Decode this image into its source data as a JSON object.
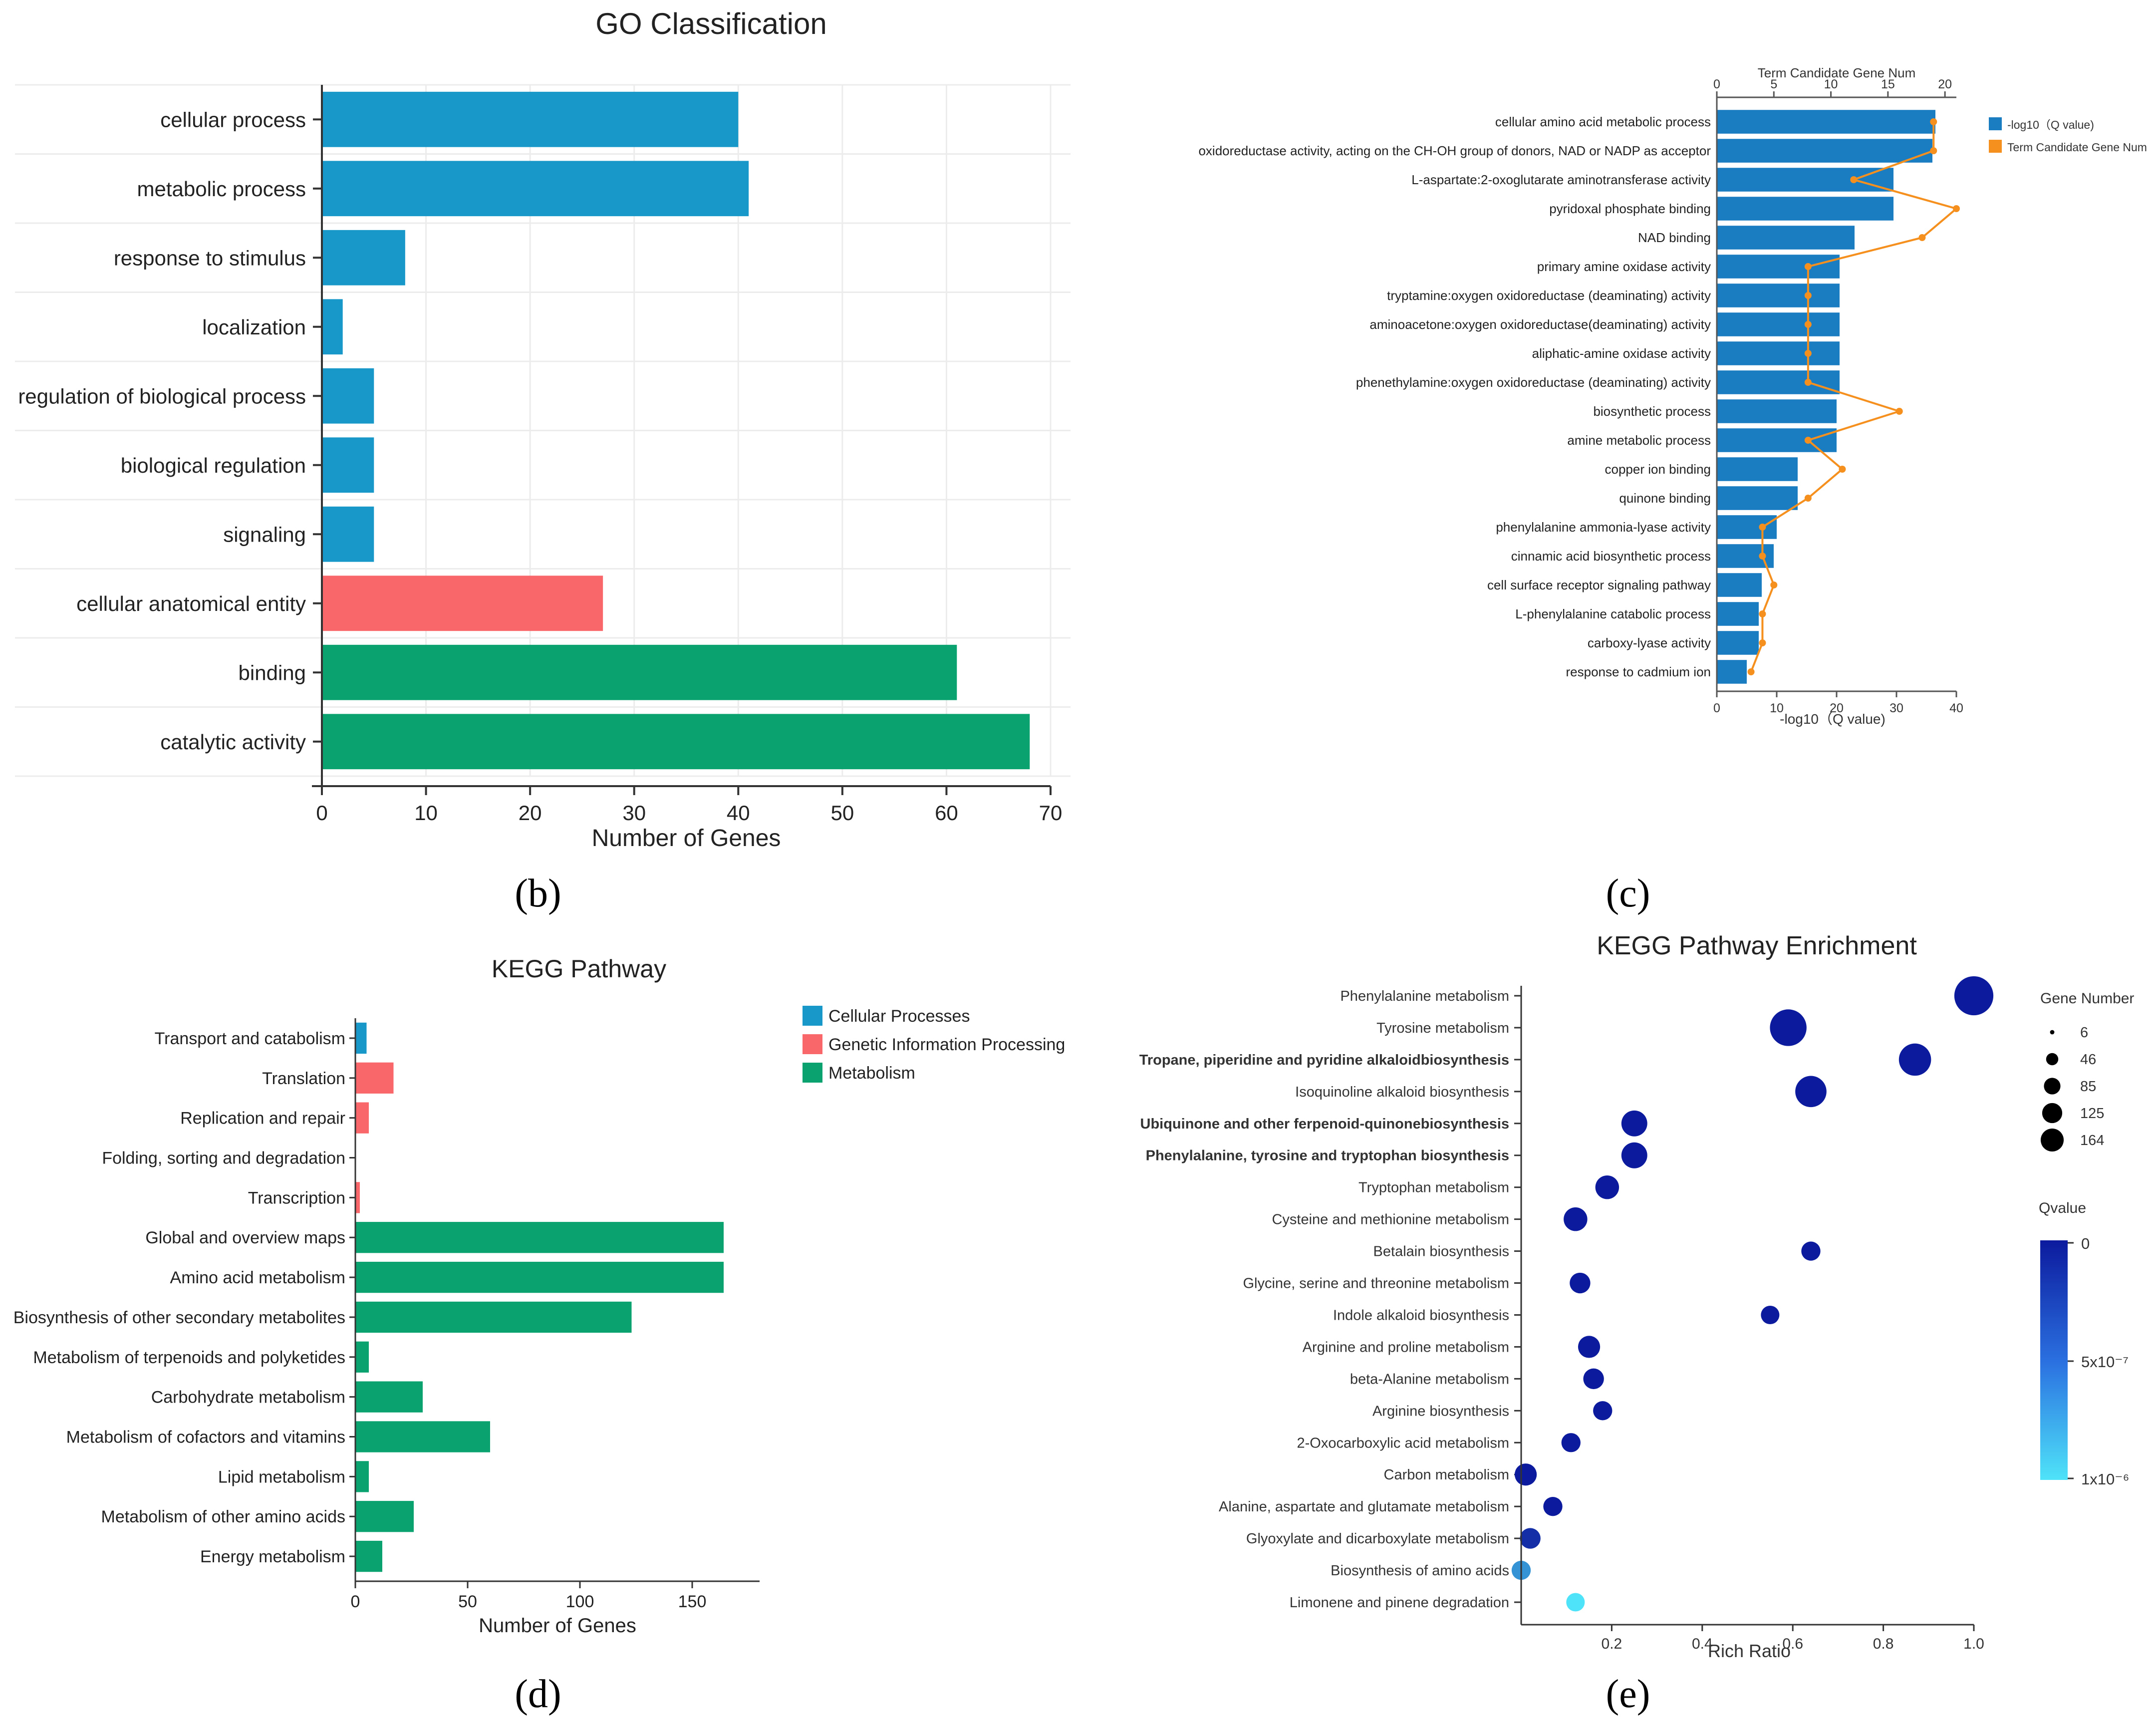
{
  "panel_labels": [
    "(b)",
    "(c)",
    "(d)",
    "(e)"
  ],
  "colors": {
    "cellular": "#1798c8",
    "genetic": "#f9676b",
    "metabolism": "#0aa26f",
    "go_bar": "#1a7cc1",
    "go_line": "#f5901f",
    "kegg_bubble_dark": "#0c1a9e",
    "kegg_bubble_light": "#4fe3f9"
  },
  "chart_data": [
    {
      "id": "b",
      "type": "bar",
      "orientation": "horizontal",
      "title": "GO Classification",
      "xlabel": "Number of Genes",
      "xlim": [
        0,
        70
      ],
      "xticks": [
        "0",
        "10",
        "20",
        "30",
        "40",
        "50",
        "60",
        "70"
      ],
      "categories": [
        "cellular process",
        "metabolic process",
        "response to stimulus",
        "localization",
        "regulation of biological process",
        "biological regulation",
        "signaling",
        "cellular anatomical entity",
        "binding",
        "catalytic activity"
      ],
      "values": [
        40,
        41,
        8,
        2,
        5,
        5,
        5,
        27,
        61,
        68
      ],
      "groups": [
        "cellular",
        "cellular",
        "cellular",
        "cellular",
        "cellular",
        "cellular",
        "cellular",
        "genetic",
        "metabolism",
        "metabolism"
      ],
      "grid": true
    },
    {
      "id": "c",
      "type": "bar",
      "orientation": "horizontal",
      "top_axis_label": "Term Candidate Gene Num",
      "xlabel": "-log10（Q value)",
      "xlim": [
        0,
        40
      ],
      "xticks": [
        "0",
        "10",
        "20",
        "30",
        "40"
      ],
      "x2lim": [
        0,
        21
      ],
      "x2ticks": [
        "0",
        "5",
        "10",
        "15",
        "20"
      ],
      "legend": [
        "-log10（Q value)",
        "Term Candidate Gene Num"
      ],
      "legend_position": "top-right",
      "categories": [
        "cellular amino acid metabolic process",
        "oxidoreductase activity, acting on the CH-OH group of donors, NAD or NADP as acceptor",
        "L-aspartate:2-oxoglutarate aminotransferase activity",
        "pyridoxal phosphate binding",
        "NAD binding",
        "primary amine oxidase activity",
        "tryptamine:oxygen oxidoreductase (deaminating) activity",
        "aminoacetone:oxygen oxidoreductase(deaminating) activity",
        "aliphatic-amine oxidase activity",
        "phenethylamine:oxygen oxidoreductase (deaminating) activity",
        "biosynthetic process",
        "amine metabolic process",
        "copper ion binding",
        "quinone binding",
        "phenylalanine ammonia-lyase activity",
        "cinnamic acid biosynthetic process",
        "cell surface receptor signaling pathway",
        "L-phenylalanine catabolic process",
        "carboxy-lyase activity",
        "response to cadmium ion"
      ],
      "series": [
        {
          "name": "-log10（Q value)",
          "values": [
            36.5,
            36,
            29.5,
            29.5,
            23,
            20.5,
            20.5,
            20.5,
            20.5,
            20.5,
            20,
            20,
            13.5,
            13.5,
            10,
            9.5,
            7.5,
            7,
            7,
            5
          ]
        },
        {
          "name": "Term Candidate Gene Num",
          "values": [
            19,
            19,
            12,
            21,
            18,
            8,
            8,
            8,
            8,
            8,
            16,
            8,
            11,
            8,
            4,
            4,
            5,
            4,
            4,
            3
          ]
        }
      ]
    },
    {
      "id": "d",
      "type": "bar",
      "orientation": "horizontal",
      "title": "KEGG Pathway",
      "xlabel": "Number of Genes",
      "xlim": [
        0,
        180
      ],
      "xticks": [
        "0",
        "50",
        "100",
        "150"
      ],
      "legend": [
        {
          "key": "cellular",
          "label": "Cellular Processes"
        },
        {
          "key": "genetic",
          "label": "Genetic Information Processing"
        },
        {
          "key": "metabolism",
          "label": "Metabolism"
        }
      ],
      "legend_position": "top-right",
      "categories": [
        "Transport and catabolism",
        "Translation",
        "Replication and repair",
        "Folding, sorting and degradation",
        "Transcription",
        "Global and overview maps",
        "Amino acid metabolism",
        "Biosynthesis of other secondary metabolites",
        "Metabolism of terpenoids and polyketides",
        "Carbohydrate metabolism",
        "Metabolism of cofactors and vitamins",
        "Lipid metabolism",
        "Metabolism of other amino acids",
        "Energy metabolism"
      ],
      "values": [
        5,
        17,
        6,
        0,
        2,
        164,
        164,
        123,
        6,
        30,
        60,
        6,
        26,
        12
      ],
      "groups": [
        "cellular",
        "genetic",
        "genetic",
        "genetic",
        "genetic",
        "metabolism",
        "metabolism",
        "metabolism",
        "metabolism",
        "metabolism",
        "metabolism",
        "metabolism",
        "metabolism",
        "metabolism"
      ]
    },
    {
      "id": "e",
      "type": "scatter",
      "title": "KEGG Pathway Enrichment",
      "xlabel": "Rich Ratio",
      "xlim": [
        0,
        1.0
      ],
      "xticks": [
        "0.2",
        "0.4",
        "0.6",
        "0.8",
        "1.0"
      ],
      "size_legend_title": "Gene Number",
      "size_legend": [
        6,
        46,
        85,
        125,
        164
      ],
      "color_legend_title": "Qvalue",
      "color_ticks": [
        "0",
        "5x10⁻⁷",
        "1x10⁻⁶"
      ],
      "categories": [
        "Phenylalanine metabolism",
        "Tyrosine metabolism",
        "Tropane, piperidine and pyridine alkaloidbiosynthesis",
        "Isoquinoline alkaloid biosynthesis",
        "Ubiquinone and other ferpenoid-quinonebiosynthesis",
        "Phenylalanine, tyrosine and tryptophan biosynthesis",
        "Tryptophan metabolism",
        "Cysteine and methionine metabolism",
        "Betalain biosynthesis",
        "Glycine, serine and threonine metabolism",
        "Indole alkaloid biosynthesis",
        "Arginine and proline metabolism",
        "beta-Alanine metabolism",
        "Arginine biosynthesis",
        "2-Oxocarboxylic acid metabolism",
        "Carbon metabolism",
        "Alanine, aspartate and glutamate metabolism",
        "Glyoxylate and dicarboxylate metabolism",
        "Biosynthesis of amino acids",
        "Limonene and pinene degradation"
      ],
      "bold": [
        false,
        false,
        true,
        false,
        true,
        true,
        false,
        false,
        false,
        false,
        false,
        false,
        false,
        false,
        false,
        false,
        false,
        false,
        false,
        false
      ],
      "points": [
        {
          "x": 1.0,
          "size": 125,
          "q": 0
        },
        {
          "x": 0.59,
          "size": 110,
          "q": 0
        },
        {
          "x": 0.87,
          "size": 85,
          "q": 0
        },
        {
          "x": 0.64,
          "size": 80,
          "q": 0
        },
        {
          "x": 0.25,
          "size": 55,
          "q": 0
        },
        {
          "x": 0.25,
          "size": 55,
          "q": 0
        },
        {
          "x": 0.19,
          "size": 46,
          "q": 0
        },
        {
          "x": 0.12,
          "size": 46,
          "q": 0
        },
        {
          "x": 0.64,
          "size": 30,
          "q": 0
        },
        {
          "x": 0.13,
          "size": 35,
          "q": 0
        },
        {
          "x": 0.55,
          "size": 28,
          "q": 0
        },
        {
          "x": 0.15,
          "size": 40,
          "q": 0
        },
        {
          "x": 0.16,
          "size": 35,
          "q": 0
        },
        {
          "x": 0.18,
          "size": 30,
          "q": 0
        },
        {
          "x": 0.11,
          "size": 30,
          "q": 0
        },
        {
          "x": 0.01,
          "size": 40,
          "q": 0
        },
        {
          "x": 0.07,
          "size": 30,
          "q": 0
        },
        {
          "x": 0.02,
          "size": 35,
          "q": 1e-07
        },
        {
          "x": 0.0,
          "size": 30,
          "q": 6e-07
        },
        {
          "x": 0.12,
          "size": 28,
          "q": 1e-06
        }
      ]
    }
  ]
}
